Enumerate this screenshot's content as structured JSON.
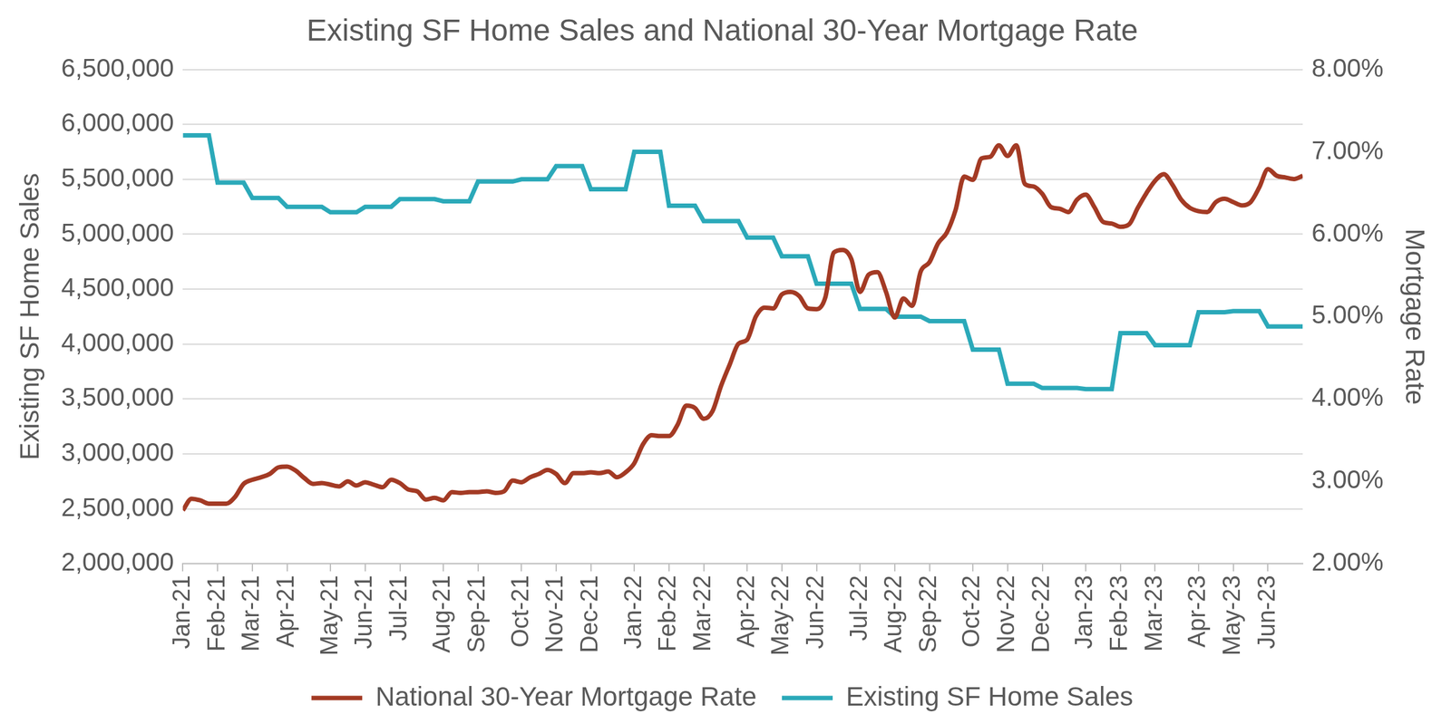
{
  "chart_data": {
    "type": "line",
    "title": "Existing SF Home Sales and National 30-Year Mortgage Rate",
    "ylabel": "Existing SF Home Sales",
    "y2label": "Mortgage Rate",
    "categories": [
      "Jan-21",
      null,
      null,
      null,
      "Feb-21",
      null,
      null,
      null,
      "Mar-21",
      null,
      null,
      null,
      "Apr-21",
      null,
      null,
      null,
      null,
      "May-21",
      null,
      null,
      null,
      "Jun-21",
      null,
      null,
      null,
      "Jul-21",
      null,
      null,
      null,
      null,
      "Aug-21",
      null,
      null,
      null,
      "Sep-21",
      null,
      null,
      null,
      null,
      "Oct-21",
      null,
      null,
      null,
      "Nov-21",
      null,
      null,
      null,
      "Dec-21",
      null,
      null,
      null,
      null,
      "Jan-22",
      null,
      null,
      null,
      "Feb-22",
      null,
      null,
      null,
      "Mar-22",
      null,
      null,
      null,
      null,
      "Apr-22",
      null,
      null,
      null,
      "May-22",
      null,
      null,
      null,
      "Jun-22",
      null,
      null,
      null,
      null,
      "Jul-22",
      null,
      null,
      null,
      "Aug-22",
      null,
      null,
      null,
      "Sep-22",
      null,
      null,
      null,
      null,
      "Oct-22",
      null,
      null,
      null,
      "Nov-22",
      null,
      null,
      null,
      "Dec-22",
      null,
      null,
      null,
      null,
      "Jan-23",
      null,
      null,
      null,
      "Feb-23",
      null,
      null,
      null,
      "Mar-23",
      null,
      null,
      null,
      null,
      "Apr-23",
      null,
      null,
      null,
      "May-23",
      null,
      null,
      null,
      "Jun-23",
      null,
      null,
      null,
      null
    ],
    "series": [
      {
        "name": "Existing SF Home Sales",
        "color": "#2BA9B9",
        "axis": "y",
        "values": [
          5900000,
          5900000,
          5900000,
          5900000,
          5470000,
          5470000,
          5470000,
          5470000,
          5330000,
          5330000,
          5330000,
          5330000,
          5250000,
          5250000,
          5250000,
          5250000,
          5250000,
          5200000,
          5200000,
          5200000,
          5200000,
          5250000,
          5250000,
          5250000,
          5250000,
          5320000,
          5320000,
          5320000,
          5320000,
          5320000,
          5300000,
          5300000,
          5300000,
          5300000,
          5480000,
          5480000,
          5480000,
          5480000,
          5480000,
          5500000,
          5500000,
          5500000,
          5500000,
          5620000,
          5620000,
          5620000,
          5620000,
          5410000,
          5410000,
          5410000,
          5410000,
          5410000,
          5750000,
          5750000,
          5750000,
          5750000,
          5260000,
          5260000,
          5260000,
          5260000,
          5120000,
          5120000,
          5120000,
          5120000,
          5120000,
          4970000,
          4970000,
          4970000,
          4970000,
          4800000,
          4800000,
          4800000,
          4800000,
          4550000,
          4550000,
          4550000,
          4550000,
          4550000,
          4320000,
          4320000,
          4320000,
          4320000,
          4250000,
          4250000,
          4250000,
          4250000,
          4210000,
          4210000,
          4210000,
          4210000,
          4210000,
          3950000,
          3950000,
          3950000,
          3950000,
          3640000,
          3640000,
          3640000,
          3640000,
          3600000,
          3600000,
          3600000,
          3600000,
          3600000,
          3590000,
          3590000,
          3590000,
          3590000,
          4100000,
          4100000,
          4100000,
          4100000,
          3990000,
          3990000,
          3990000,
          3990000,
          3990000,
          4290000,
          4290000,
          4290000,
          4290000,
          4300000,
          4300000,
          4300000,
          4300000,
          4160000,
          4160000,
          4160000,
          4160000,
          4160000
        ]
      },
      {
        "name": "National 30-Year Mortgage Rate",
        "color": "#A33A24",
        "axis": "y2",
        "values": [
          2.65,
          2.79,
          2.77,
          2.73,
          2.73,
          2.73,
          2.81,
          2.97,
          3.02,
          3.05,
          3.09,
          3.17,
          3.18,
          3.13,
          3.04,
          2.97,
          2.98,
          2.96,
          2.94,
          3.0,
          2.95,
          2.99,
          2.96,
          2.93,
          3.02,
          2.98,
          2.9,
          2.88,
          2.78,
          2.8,
          2.77,
          2.87,
          2.86,
          2.87,
          2.87,
          2.88,
          2.86,
          2.88,
          3.01,
          2.99,
          3.05,
          3.09,
          3.14,
          3.09,
          2.98,
          3.1,
          3.1,
          3.11,
          3.1,
          3.12,
          3.05,
          3.11,
          3.22,
          3.45,
          3.56,
          3.55,
          3.55,
          3.69,
          3.92,
          3.89,
          3.76,
          3.85,
          4.16,
          4.42,
          4.67,
          4.72,
          5.0,
          5.11,
          5.1,
          5.27,
          5.3,
          5.25,
          5.1,
          5.09,
          5.23,
          5.78,
          5.81,
          5.7,
          5.3,
          5.51,
          5.54,
          5.3,
          4.99,
          5.22,
          5.13,
          5.55,
          5.66,
          5.89,
          6.02,
          6.29,
          6.7,
          6.66,
          6.92,
          6.94,
          7.08,
          6.95,
          7.08,
          6.61,
          6.58,
          6.49,
          6.33,
          6.31,
          6.27,
          6.42,
          6.48,
          6.33,
          6.15,
          6.13,
          6.09,
          6.12,
          6.32,
          6.5,
          6.65,
          6.73,
          6.6,
          6.42,
          6.32,
          6.28,
          6.27,
          6.39,
          6.43,
          6.39,
          6.35,
          6.39,
          6.57,
          6.79,
          6.71,
          6.69,
          6.67,
          6.71
        ]
      }
    ],
    "ylim": [
      2000000,
      6500000
    ],
    "yticks": [
      {
        "value": 2000000,
        "label": "2,000,000"
      },
      {
        "value": 2500000,
        "label": "2,500,000"
      },
      {
        "value": 3000000,
        "label": "3,000,000"
      },
      {
        "value": 3500000,
        "label": "3,500,000"
      },
      {
        "value": 4000000,
        "label": "4,000,000"
      },
      {
        "value": 4500000,
        "label": "4,500,000"
      },
      {
        "value": 5000000,
        "label": "5,000,000"
      },
      {
        "value": 5500000,
        "label": "5,500,000"
      },
      {
        "value": 6000000,
        "label": "6,000,000"
      },
      {
        "value": 6500000,
        "label": "6,500,000"
      }
    ],
    "y2lim": [
      2,
      8
    ],
    "y2ticks": [
      {
        "value": 2,
        "label": "2.00%"
      },
      {
        "value": 3,
        "label": "3.00%"
      },
      {
        "value": 4,
        "label": "4.00%"
      },
      {
        "value": 5,
        "label": "5.00%"
      },
      {
        "value": 6,
        "label": "6.00%"
      },
      {
        "value": 7,
        "label": "7.00%"
      },
      {
        "value": 8,
        "label": "8.00%"
      }
    ],
    "grid": true,
    "legend": "bottom"
  }
}
